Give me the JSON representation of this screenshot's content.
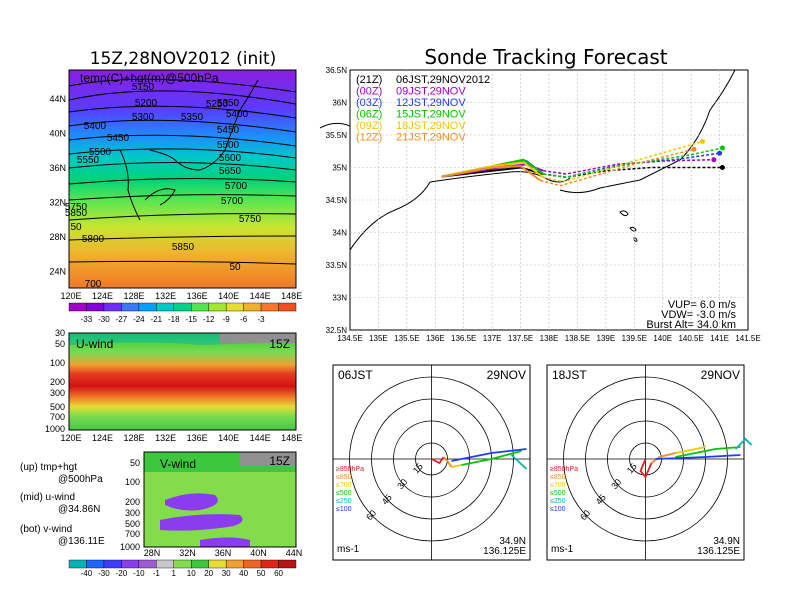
{
  "page": {
    "title": "Sonde Tracking Forecast"
  },
  "main_map": {
    "title": "15Z,28NOV2012 (init)",
    "field_label": "temp(C)+hgt(m)@500hPa",
    "x_ticks": [
      "120E",
      "124E",
      "128E",
      "132E",
      "136E",
      "140E",
      "144E",
      "148E"
    ],
    "y_ticks": [
      "44N",
      "40N",
      "36N",
      "32N",
      "28N",
      "24N"
    ],
    "contour_labels": [
      "5150",
      "5200",
      "5250",
      "5300",
      "5350",
      "5350",
      "5400",
      "5400",
      "5450",
      "5450",
      "5500",
      "5500",
      "5550",
      "5600",
      "5650",
      "5700",
      "5700",
      "5750",
      "5750",
      "5800",
      "5850",
      "5850",
      "50",
      "50",
      "700"
    ],
    "colorbar_labels": [
      "-33",
      "-30",
      "-27",
      "-24",
      "-21",
      "-18",
      "-15",
      "-12",
      "-9",
      "-6",
      "-3"
    ],
    "colorbar_colors": [
      "#a000c8",
      "#8200dc",
      "#6e2cff",
      "#3c78ff",
      "#00a0ff",
      "#00c8c8",
      "#00d28c",
      "#50e650",
      "#a0e632",
      "#e6dc32",
      "#f0af2d",
      "#fa7828",
      "#f0501e"
    ]
  },
  "uwind": {
    "title": "U-wind",
    "time": "15Z",
    "x_ticks": [
      "120E",
      "124E",
      "128E",
      "132E",
      "136E",
      "140E",
      "144E",
      "148E"
    ],
    "y_ticks": [
      "30",
      "50",
      "100",
      "200",
      "300",
      "500",
      "700",
      "1000"
    ]
  },
  "vwind": {
    "title": "V-wind",
    "time": "15Z",
    "x_ticks": [
      "28N",
      "32N",
      "36N",
      "40N",
      "44N"
    ],
    "y_ticks": [
      "50",
      "100",
      "200",
      "300",
      "500",
      "700",
      "1000"
    ]
  },
  "legend_notes": [
    {
      "top": "(up)  tmp+hgt",
      "bottom": "@500hPa"
    },
    {
      "top": "(mid)  u-wind",
      "bottom": "@34.86N"
    },
    {
      "top": "(bot)  v-wind",
      "bottom": "@136.11E"
    }
  ],
  "wind_colorbar": {
    "labels": [
      "-40",
      "-30",
      "-20",
      "-10",
      "-1",
      "1",
      "10",
      "20",
      "30",
      "40",
      "50",
      "60"
    ],
    "colors": [
      "#00b4b4",
      "#1e64ff",
      "#3c3cff",
      "#8c3cf0",
      "#a05ad2",
      "#c8c8c8",
      "#82dc4b",
      "#3cc83c",
      "#e6dc32",
      "#f0a032",
      "#f06428",
      "#dc2814",
      "#b41414"
    ]
  },
  "track_map": {
    "x_ticks": [
      "134.5E",
      "135E",
      "135.5E",
      "136E",
      "136.5E",
      "137E",
      "137.5E",
      "138E",
      "138.5E",
      "139E",
      "139.5E",
      "140E",
      "140.5E",
      "141E",
      "141.5E"
    ],
    "y_ticks": [
      "36.5N",
      "36N",
      "35.5N",
      "35N",
      "34.5N",
      "34N",
      "33.5N",
      "33N",
      "32.5N"
    ],
    "legend": [
      {
        "code": "(21Z)",
        "time": "06JST,29NOV2012",
        "color": "#000000"
      },
      {
        "code": "(00Z)",
        "time": "09JST,29NOV",
        "color": "#a000c8"
      },
      {
        "code": "(03Z)",
        "time": "12JST,29NOV",
        "color": "#1e3cff"
      },
      {
        "code": "(06Z)",
        "time": "15JST,29NOV",
        "color": "#00c800"
      },
      {
        "code": "(09Z)",
        "time": "18JST,29NOV",
        "color": "#f0c800"
      },
      {
        "code": "(12Z)",
        "time": "21JST,29NOV",
        "color": "#f08c28"
      }
    ],
    "vup": "VUP=  6.0  m/s",
    "vdw": "VDW= -3.0  m/s",
    "burst": "Burst Alt=  34.0  km"
  },
  "chart_data": [
    {
      "type": "line",
      "title": "Sonde Tracking Forecast",
      "x_range": [
        134.5,
        141.5
      ],
      "y_range": [
        32.5,
        36.5
      ],
      "series": [
        {
          "name": "(21Z)  06JST,29NOV2012",
          "color": "#000000",
          "x": [
            136.11,
            137.0,
            137.5,
            137.9,
            138.3,
            139.0,
            139.8,
            140.5,
            141.05
          ],
          "y": [
            34.86,
            34.95,
            35.0,
            34.9,
            34.85,
            34.95,
            35.0,
            35.0,
            35.0
          ]
        },
        {
          "name": "(00Z)  09JST,29NOV",
          "color": "#a000c8",
          "x": [
            136.11,
            137.0,
            137.6,
            137.9,
            138.3,
            139.2,
            140.0,
            140.9
          ],
          "y": [
            34.86,
            34.98,
            35.05,
            34.95,
            34.9,
            35.05,
            35.1,
            35.12
          ]
        },
        {
          "name": "(03Z)  12JST,29NOV",
          "color": "#1e3cff",
          "x": [
            136.11,
            137.0,
            137.6,
            137.9,
            138.3,
            139.3,
            140.2,
            141.0
          ],
          "y": [
            34.86,
            35.0,
            35.1,
            34.9,
            34.85,
            35.05,
            35.12,
            35.22
          ]
        },
        {
          "name": "(06Z)  15JST,29NOV",
          "color": "#00c800",
          "x": [
            136.11,
            137.0,
            137.55,
            137.9,
            138.3,
            139.4,
            140.4,
            141.05
          ],
          "y": [
            34.86,
            35.02,
            35.12,
            34.9,
            34.85,
            35.05,
            35.18,
            35.3
          ]
        },
        {
          "name": "(09Z)  18JST,29NOV",
          "color": "#f0c800",
          "x": [
            136.11,
            137.0,
            137.55,
            137.9,
            138.25,
            139.5,
            140.7
          ],
          "y": [
            34.86,
            35.02,
            35.08,
            34.85,
            34.78,
            35.1,
            35.4
          ]
        },
        {
          "name": "(12Z)  21JST,29NOV",
          "color": "#f08c28",
          "x": [
            136.11,
            137.0,
            137.5,
            137.85,
            138.2,
            139.5,
            140.55
          ],
          "y": [
            34.86,
            35.0,
            35.02,
            34.8,
            34.72,
            35.05,
            35.28
          ]
        }
      ]
    }
  ],
  "hodographs": [
    {
      "label": "06JST",
      "date": "29NOV",
      "lat": "34.9N",
      "lon": "136.125E",
      "unit": "ms-1",
      "rings": [
        "15",
        "30",
        "45",
        "60"
      ],
      "levels": [
        "≥850hPa",
        "≤850",
        "≤700",
        "≤500",
        "≤250",
        "≤100"
      ],
      "level_colors": [
        "#e61e1e",
        "#f08c28",
        "#f0c800",
        "#00c800",
        "#00b4b4",
        "#1e3cff"
      ]
    },
    {
      "label": "18JST",
      "date": "29NOV",
      "lat": "34.9N",
      "lon": "136.125E",
      "unit": "ms-1",
      "rings": [
        "15",
        "30",
        "45",
        "60"
      ],
      "levels": [
        "≥850hPa",
        "≤850",
        "≤700",
        "≤500",
        "≤250",
        "≤100"
      ],
      "level_colors": [
        "#e61e1e",
        "#f08c28",
        "#f0c800",
        "#00c800",
        "#00b4b4",
        "#1e3cff"
      ]
    }
  ]
}
